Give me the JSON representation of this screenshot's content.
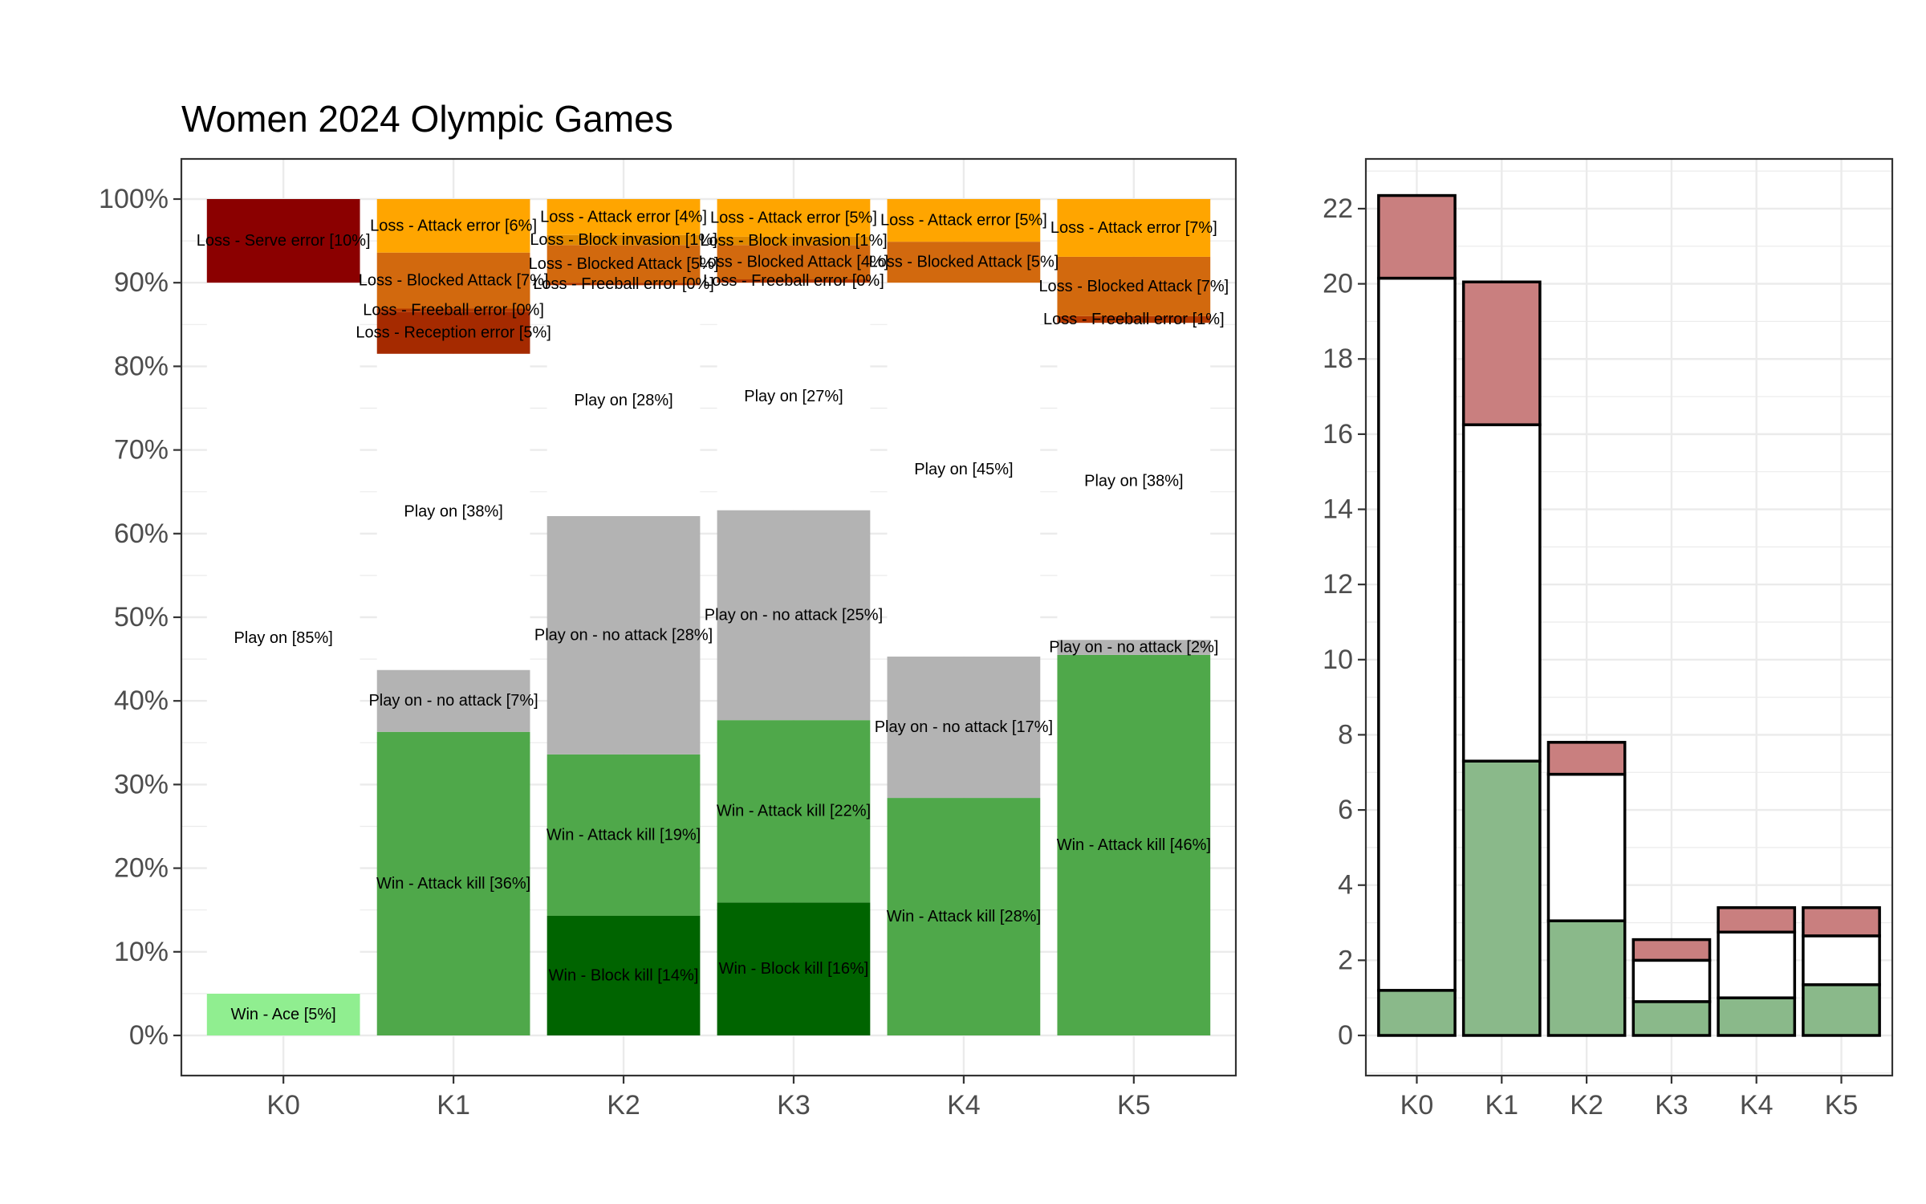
{
  "chart_data": [
    {
      "type": "bar",
      "stacked": true,
      "percent": true,
      "title": "Women 2024 Olympic Games",
      "xlabel": "",
      "ylabel": "",
      "categories": [
        "K0",
        "K1",
        "K2",
        "K3",
        "K4",
        "K5"
      ],
      "ylim": [
        0,
        100
      ],
      "yticks": [
        "0%",
        "10%",
        "20%",
        "30%",
        "40%",
        "50%",
        "60%",
        "70%",
        "80%",
        "90%",
        "100%"
      ],
      "grid": true,
      "colors": {
        "Win - Ace": "#90ee90",
        "Win - Block kill": "#006400",
        "Win - Attack kill": "#4fa84a",
        "Play on - no attack": "#b3b3b3",
        "Play on": "#ffffff",
        "Loss - Reception error": "#a52a00",
        "Loss - Freeball error": "#b53a00",
        "Loss - Blocked Attack": "#d2690e",
        "Loss - Block invasion": "#e08a00",
        "Loss - Attack error": "#ffa500",
        "Loss - Serve error": "#8b0000"
      },
      "stacks": [
        {
          "category": "K0",
          "segments": [
            {
              "name": "Win - Ace",
              "value": 5,
              "label": "Win - Ace [5%]"
            },
            {
              "name": "Play on",
              "value": 85,
              "label": "Play on [85%]"
            },
            {
              "name": "Loss - Serve error",
              "value": 10,
              "label": "Loss - Serve error [10%]"
            }
          ]
        },
        {
          "category": "K1",
          "segments": [
            {
              "name": "Win - Attack kill",
              "value": 36.3,
              "label": "Win - Attack kill [36%]"
            },
            {
              "name": "Play on - no attack",
              "value": 7.4,
              "label": "Play on - no attack [7%]"
            },
            {
              "name": "Play on",
              "value": 37.8,
              "label": "Play on [38%]"
            },
            {
              "name": "Loss - Reception error",
              "value": 5.0,
              "label": "Loss - Reception error [5%]"
            },
            {
              "name": "Loss - Freeball error",
              "value": 0.4,
              "label": "Loss - Freeball error [0%]"
            },
            {
              "name": "Loss - Blocked Attack",
              "value": 6.7,
              "label": "Loss - Blocked Attack [7%]"
            },
            {
              "name": "Loss - Attack error",
              "value": 6.4,
              "label": "Loss - Attack error [6%]"
            }
          ]
        },
        {
          "category": "K2",
          "segments": [
            {
              "name": "Win - Block kill",
              "value": 14.3,
              "label": "Win - Block kill [14%]"
            },
            {
              "name": "Win - Attack kill",
              "value": 19.3,
              "label": "Win - Attack kill [19%]"
            },
            {
              "name": "Play on - no attack",
              "value": 28.5,
              "label": "Play on - no attack [28%]"
            },
            {
              "name": "Play on",
              "value": 27.6,
              "label": "Play on [28%]"
            },
            {
              "name": "Loss - Freeball error",
              "value": 0.3,
              "label": "Loss - Freeball error [0%]"
            },
            {
              "name": "Loss - Blocked Attack",
              "value": 4.5,
              "label": "Loss - Blocked Attack [5%]"
            },
            {
              "name": "Loss - Block invasion",
              "value": 1.2,
              "label": "Loss - Block invasion [1%]"
            },
            {
              "name": "Loss - Attack error",
              "value": 4.3,
              "label": "Loss - Attack error [4%]"
            }
          ]
        },
        {
          "category": "K3",
          "segments": [
            {
              "name": "Win - Block kill",
              "value": 15.9,
              "label": "Win - Block kill [16%]"
            },
            {
              "name": "Win - Attack kill",
              "value": 21.8,
              "label": "Win - Attack kill [22%]"
            },
            {
              "name": "Play on - no attack",
              "value": 25.1,
              "label": "Play on - no attack [25%]"
            },
            {
              "name": "Play on",
              "value": 27.2,
              "label": "Play on [27%]"
            },
            {
              "name": "Loss - Freeball error",
              "value": 0.4,
              "label": "Loss - Freeball error [0%]"
            },
            {
              "name": "Loss - Blocked Attack",
              "value": 4.1,
              "label": "Loss - Blocked Attack [4%]"
            },
            {
              "name": "Loss - Block invasion",
              "value": 1.0,
              "label": "Loss - Block invasion [1%]"
            },
            {
              "name": "Loss - Attack error",
              "value": 4.5,
              "label": "Loss - Attack error [5%]"
            }
          ]
        },
        {
          "category": "K4",
          "segments": [
            {
              "name": "Win - Attack kill",
              "value": 28.4,
              "label": "Win - Attack kill [28%]"
            },
            {
              "name": "Play on - no attack",
              "value": 16.9,
              "label": "Play on - no attack [17%]"
            },
            {
              "name": "Play on",
              "value": 44.7,
              "label": "Play on [45%]"
            },
            {
              "name": "Loss - Blocked Attack",
              "value": 4.9,
              "label": "Loss - Blocked Attack [5%]"
            },
            {
              "name": "Loss - Attack error",
              "value": 5.1,
              "label": "Loss - Attack error [5%]"
            }
          ]
        },
        {
          "category": "K5",
          "segments": [
            {
              "name": "Win - Attack kill",
              "value": 45.5,
              "label": "Win - Attack kill [46%]"
            },
            {
              "name": "Play on - no attack",
              "value": 1.8,
              "label": "Play on - no attack [2%]"
            },
            {
              "name": "Play on",
              "value": 37.9,
              "label": "Play on [38%]"
            },
            {
              "name": "Loss - Freeball error",
              "value": 0.8,
              "label": "Loss - Freeball error [1%]"
            },
            {
              "name": "Loss - Blocked Attack",
              "value": 7.1,
              "label": "Loss - Blocked Attack [7%]"
            },
            {
              "name": "Loss - Attack error",
              "value": 6.9,
              "label": "Loss - Attack error [7%]"
            }
          ]
        }
      ]
    },
    {
      "type": "bar",
      "stacked": true,
      "title": "",
      "xlabel": "",
      "ylabel": "",
      "categories": [
        "K0",
        "K1",
        "K2",
        "K3",
        "K4",
        "K5"
      ],
      "ylim": [
        -1,
        23
      ],
      "yticks": [
        0,
        2,
        4,
        6,
        8,
        10,
        12,
        14,
        16,
        18,
        20,
        22
      ],
      "grid": true,
      "colors": {
        "win": "#8ab98a",
        "play_on": "#ffffff",
        "loss": "#c97f7f",
        "outline": "#000000"
      },
      "series": [
        {
          "role": "win",
          "values": [
            1.2,
            7.3,
            3.05,
            0.9,
            1.0,
            1.35
          ]
        },
        {
          "role": "play_on",
          "values": [
            18.95,
            8.95,
            3.9,
            1.1,
            1.75,
            1.3
          ]
        },
        {
          "role": "loss",
          "values": [
            2.2,
            3.8,
            0.85,
            0.55,
            0.65,
            0.75
          ]
        }
      ]
    }
  ]
}
